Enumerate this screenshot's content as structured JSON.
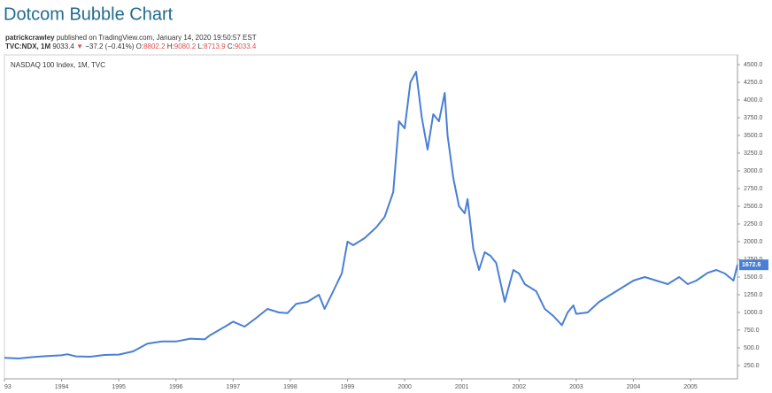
{
  "header": {
    "title": "Dotcom Bubble Chart",
    "author": "patrickcrawley",
    "published": "published on TradingView.com, January 14, 2020 19:50:57 EST",
    "symbol": "TVC:NDX, 1M",
    "price": "9033.4",
    "arrow": "▼",
    "change": "−37.2 (−0.41%)",
    "ohlc": [
      {
        "label": "O:",
        "value": "8802.2"
      },
      {
        "label": "H:",
        "value": "9080.2"
      },
      {
        "label": "L:",
        "value": "8713.9"
      },
      {
        "label": "C:",
        "value": "9033.4"
      }
    ]
  },
  "chart_data": {
    "type": "line",
    "x": [
      1993.0,
      1993.25,
      1993.5,
      1993.75,
      1994.0,
      1994.1,
      1994.25,
      1994.5,
      1994.75,
      1995.0,
      1995.25,
      1995.5,
      1995.75,
      1996.0,
      1996.25,
      1996.5,
      1996.6,
      1996.9,
      1997.0,
      1997.2,
      1997.4,
      1997.6,
      1997.8,
      1997.95,
      1998.1,
      1998.3,
      1998.5,
      1998.6,
      1998.75,
      1998.9,
      1999.0,
      1999.1,
      1999.3,
      1999.5,
      1999.65,
      1999.8,
      1999.9,
      2000.0,
      2000.1,
      2000.2,
      2000.3,
      2000.4,
      2000.5,
      2000.6,
      2000.7,
      2000.75,
      2000.85,
      2000.95,
      2001.05,
      2001.1,
      2001.2,
      2001.3,
      2001.4,
      2001.5,
      2001.6,
      2001.75,
      2001.9,
      2002.0,
      2002.1,
      2002.3,
      2002.45,
      2002.6,
      2002.75,
      2002.85,
      2002.95,
      2003.0,
      2003.2,
      2003.4,
      2003.6,
      2003.8,
      2004.0,
      2004.2,
      2004.4,
      2004.6,
      2004.8,
      2004.95,
      2005.1,
      2005.3,
      2005.45,
      2005.6,
      2005.75,
      2005.82
    ],
    "series": [
      {
        "name": "NASDAQ 100 Index, 1M, TVC",
        "color": "#4a7fd4",
        "values": [
          360,
          350,
          370,
          385,
          395,
          410,
          380,
          375,
          400,
          405,
          450,
          560,
          590,
          590,
          630,
          620,
          680,
          820,
          870,
          800,
          920,
          1050,
          1000,
          990,
          1120,
          1150,
          1250,
          1050,
          1300,
          1550,
          2000,
          1950,
          2050,
          2200,
          2350,
          2700,
          3700,
          3600,
          4250,
          4400,
          3750,
          3300,
          3800,
          3700,
          4100,
          3500,
          2900,
          2500,
          2400,
          2600,
          1900,
          1600,
          1850,
          1800,
          1700,
          1150,
          1600,
          1550,
          1400,
          1300,
          1050,
          950,
          820,
          1000,
          1100,
          980,
          1000,
          1150,
          1250,
          1350,
          1450,
          1500,
          1450,
          1400,
          1500,
          1400,
          1450,
          1560,
          1600,
          1550,
          1450,
          1672.6
        ]
      }
    ],
    "last_price": 1672.6,
    "xlim": [
      1993.0,
      2005.82
    ],
    "xticks": [
      {
        "value": 1993,
        "label": "93"
      },
      1994,
      1995,
      1996,
      1997,
      1998,
      1999,
      2000,
      2001,
      2002,
      2003,
      2004,
      2005
    ],
    "ylim": [
      62.5,
      4637.5
    ],
    "yticks": [
      {
        "value": 250,
        "label": "250.0"
      },
      {
        "value": 500,
        "label": "500.0"
      },
      {
        "value": 750,
        "label": "750.0"
      },
      {
        "value": 1000,
        "label": "1000.0"
      },
      {
        "value": 1250,
        "label": "1250.0"
      },
      {
        "value": 1500,
        "label": "1500.0"
      },
      {
        "value": 1750,
        "label": "1750.0"
      },
      {
        "value": 2000,
        "label": "2000.0"
      },
      {
        "value": 2250,
        "label": "2250.0"
      },
      {
        "value": 2500,
        "label": "2500.0"
      },
      {
        "value": 2750,
        "label": "2750.0"
      },
      {
        "value": 3000,
        "label": "3000.0"
      },
      {
        "value": 3250,
        "label": "3250.0"
      },
      {
        "value": 3500,
        "label": "3500.0"
      },
      {
        "value": 3750,
        "label": "3750.0"
      },
      {
        "value": 4000,
        "label": "4000.0"
      },
      {
        "value": 4250,
        "label": "4250.0"
      },
      {
        "value": 4500,
        "label": "4500.0"
      }
    ],
    "grid": false
  }
}
